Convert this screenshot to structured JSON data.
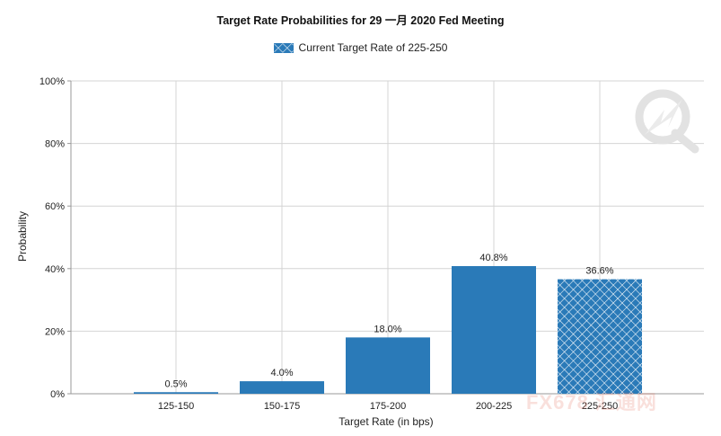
{
  "chart_data": {
    "type": "bar",
    "title": "Target Rate Probabilities for 29 一月 2020  Fed Meeting",
    "legend": {
      "label": "Current Target Rate of 225-250",
      "placement": "top-center"
    },
    "categories": [
      "125-150",
      "150-175",
      "175-200",
      "200-225",
      "225-250"
    ],
    "values": [
      0.5,
      4.0,
      18.0,
      40.8,
      36.6
    ],
    "data_labels": [
      "0.5%",
      "4.0%",
      "18.0%",
      "40.8%",
      "36.6%"
    ],
    "highlighted_category": "225-250",
    "xlabel": "Target Rate (in bps)",
    "ylabel": "Probability",
    "ylim": [
      0,
      100
    ],
    "yticks": [
      0,
      20,
      40,
      60,
      80,
      100
    ],
    "ytick_labels": [
      "0%",
      "20%",
      "40%",
      "60%",
      "80%",
      "100%"
    ],
    "grid": true,
    "colors": {
      "bar": "#2a7ab8",
      "highlight_bg": "#2a7ab8",
      "highlight_pattern": "#ffffff",
      "grid": "#d4d4d4",
      "axis": "#999999"
    }
  },
  "watermark": {
    "brand": "FX678 汇通网",
    "logo": "q-logo-icon"
  }
}
